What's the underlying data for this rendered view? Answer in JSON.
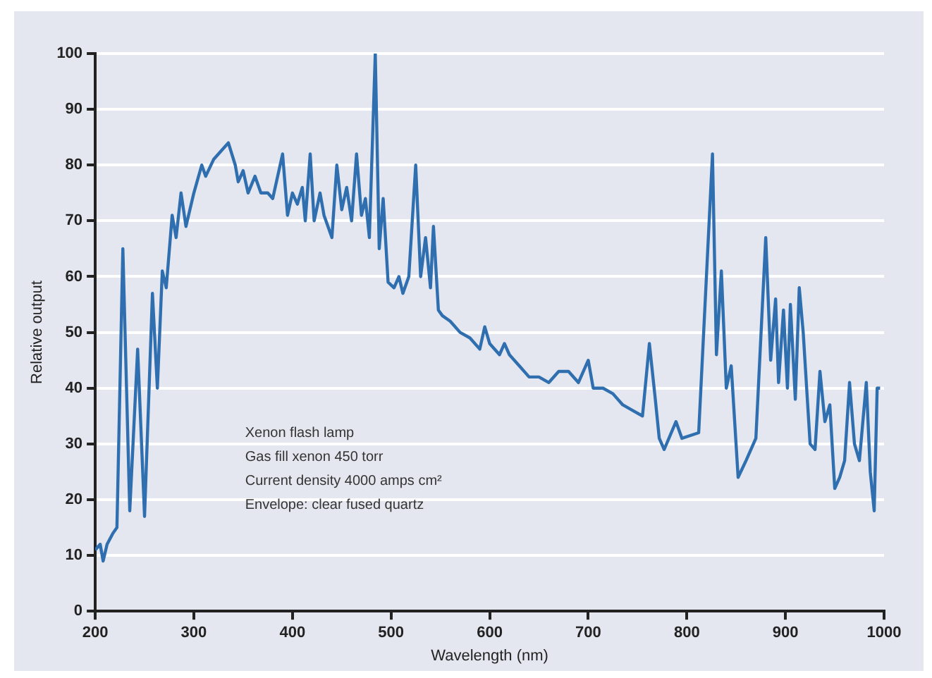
{
  "chart_data": {
    "type": "line",
    "xlabel": "Wavelength (nm)",
    "ylabel": "Relative output",
    "xlim": [
      200,
      1000
    ],
    "xticks": [
      200,
      300,
      400,
      500,
      600,
      700,
      800,
      900,
      1000
    ],
    "ylim": [
      0,
      100
    ],
    "yticks": [
      0,
      10,
      20,
      30,
      40,
      50,
      60,
      70,
      80,
      90,
      100
    ],
    "grid": "y",
    "legend": false,
    "marker": "none",
    "line_style": "solid",
    "annotations": [
      "Xenon flash lamp",
      "Gas fill xenon 450 torr",
      "Current density 4000 amps cm²",
      "Envelope: clear fused quartz"
    ],
    "series": [
      {
        "color": "#2f6fb0",
        "x": [
          200,
          205,
          208,
          212,
          218,
          222,
          228,
          235,
          243,
          250,
          258,
          263,
          268,
          272,
          278,
          282,
          287,
          292,
          300,
          308,
          312,
          320,
          330,
          335,
          342,
          345,
          350,
          355,
          362,
          368,
          375,
          380,
          390,
          395,
          400,
          405,
          410,
          413,
          418,
          422,
          428,
          432,
          440,
          445,
          450,
          455,
          460,
          465,
          470,
          474,
          478,
          484,
          488,
          492,
          497,
          503,
          508,
          512,
          518,
          525,
          530,
          535,
          540,
          543,
          548,
          552,
          560,
          570,
          580,
          590,
          595,
          600,
          610,
          615,
          620,
          630,
          640,
          650,
          660,
          670,
          680,
          690,
          700,
          705,
          715,
          725,
          735,
          745,
          755,
          762,
          768,
          772,
          777,
          789,
          795,
          812,
          826,
          830,
          835,
          840,
          845,
          852,
          860,
          870,
          880,
          885,
          890,
          893,
          898,
          902,
          905,
          910,
          914,
          918,
          925,
          930,
          935,
          940,
          945,
          950,
          955,
          960,
          965,
          970,
          975,
          982,
          986,
          990,
          993,
          996
        ],
        "values": [
          11,
          12,
          9,
          12,
          14,
          15,
          65,
          18,
          47,
          17,
          57,
          40,
          61,
          58,
          71,
          67,
          75,
          69,
          75,
          80,
          78,
          81,
          83,
          84,
          80,
          77,
          79,
          75,
          78,
          75,
          75,
          74,
          82,
          71,
          75,
          73,
          76,
          70,
          82,
          70,
          75,
          71,
          67,
          80,
          72,
          76,
          70,
          82,
          71,
          74,
          67,
          100,
          65,
          74,
          59,
          58,
          60,
          57,
          60,
          80,
          60,
          67,
          58,
          69,
          54,
          53,
          52,
          50,
          49,
          47,
          51,
          48,
          46,
          48,
          46,
          44,
          42,
          42,
          41,
          43,
          43,
          41,
          45,
          40,
          40,
          39,
          37,
          36,
          35,
          48,
          38,
          31,
          29,
          34,
          31,
          32,
          82,
          46,
          61,
          40,
          44,
          24,
          27,
          31,
          67,
          45,
          56,
          41,
          54,
          40,
          55,
          38,
          58,
          50,
          30,
          29,
          43,
          34,
          37,
          22,
          24,
          27,
          41,
          30,
          27,
          41,
          25,
          18,
          40,
          40
        ]
      }
    ]
  }
}
